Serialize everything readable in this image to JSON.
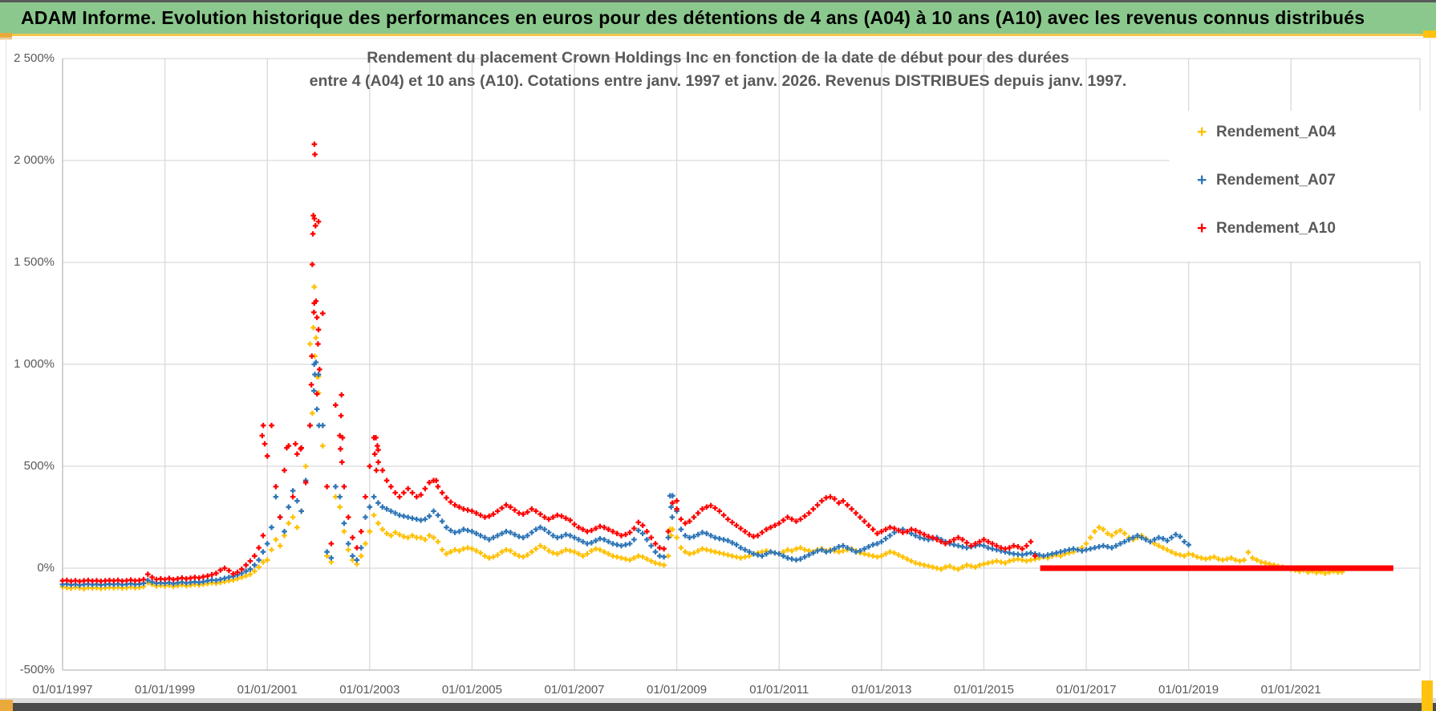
{
  "header": {
    "title": "ADAM Informe. Evolution historique des performances en euros pour des détentions de 4 ans (A04) à 10 ans (A10) avec les revenus connus distribués"
  },
  "chart": {
    "title_line1": "Rendement du placement Crown Holdings Inc en fonction de la date de début pour des durées",
    "title_line2": "entre 4 (A04) et 10 ans (A10). Cotations entre janv. 1997 et janv. 2026. Revenus DISTRIBUES depuis janv. 1997."
  },
  "chart_data": {
    "type": "scatter",
    "marker": "plus",
    "grid": true,
    "legend_position": "right-top",
    "x_axis": {
      "tick_labels": [
        "01/01/1997",
        "01/01/1999",
        "01/01/2001",
        "01/01/2003",
        "01/01/2005",
        "01/01/2007",
        "01/01/2009",
        "01/01/2011",
        "01/01/2013",
        "01/01/2015",
        "01/01/2017",
        "01/01/2019",
        "01/01/2021"
      ],
      "tick_years": [
        1997,
        1999,
        2001,
        2003,
        2005,
        2007,
        2009,
        2011,
        2013,
        2015,
        2017,
        2019,
        2021
      ],
      "range_years": [
        1997.0,
        2023.6
      ]
    },
    "y_axis": {
      "tick_labels": [
        "2 500%",
        "2 000%",
        "1 500%",
        "1 000%",
        "500%",
        "0%",
        "-500%"
      ],
      "tick_values": [
        2500,
        2000,
        1500,
        1000,
        500,
        0,
        -500
      ],
      "range": [
        -500,
        2500
      ],
      "unit": "%"
    },
    "series": [
      {
        "name": "Rendement_A04",
        "color": "#FFC000",
        "start_year": 1997.0,
        "interval_months": 1,
        "values": [
          -92,
          -96,
          -99,
          -94,
          -97,
          -101,
          -95,
          -98,
          -96,
          -100,
          -97,
          -95,
          -97,
          -94,
          -98,
          -96,
          -93,
          -97,
          -95,
          -90,
          -72,
          -80,
          -88,
          -85,
          -88,
          -84,
          -90,
          -86,
          -82,
          -87,
          -84,
          -80,
          -83,
          -79,
          -76,
          -72,
          -75,
          -70,
          -66,
          -62,
          -58,
          -52,
          -45,
          -38,
          -30,
          -15,
          5,
          30,
          40,
          90,
          140,
          110,
          160,
          220,
          250,
          200,
          280,
          500,
          1100,
          1380,
          940,
          600,
          60,
          30,
          350,
          300,
          180,
          90,
          40,
          20,
          60,
          120,
          180,
          260,
          220,
          190,
          170,
          160,
          175,
          165,
          155,
          150,
          160,
          150,
          150,
          140,
          160,
          150,
          130,
          90,
          70,
          80,
          90,
          85,
          95,
          100,
          95,
          85,
          75,
          60,
          50,
          55,
          65,
          80,
          90,
          85,
          70,
          60,
          55,
          65,
          80,
          95,
          110,
          100,
          85,
          75,
          70,
          80,
          90,
          85,
          80,
          70,
          60,
          70,
          85,
          95,
          90,
          80,
          70,
          60,
          55,
          50,
          45,
          40,
          50,
          60,
          55,
          45,
          35,
          25,
          20,
          15,
          60,
          190,
          150,
          100,
          80,
          70,
          75,
          85,
          95,
          90,
          85,
          80,
          75,
          70,
          65,
          60,
          55,
          50,
          55,
          60,
          70,
          75,
          80,
          85,
          80,
          75,
          70,
          80,
          90,
          85,
          95,
          100,
          90,
          85,
          80,
          90,
          95,
          85,
          90,
          85,
          80,
          85,
          90,
          95,
          85,
          75,
          70,
          65,
          60,
          55,
          60,
          70,
          80,
          75,
          65,
          55,
          45,
          35,
          25,
          20,
          15,
          10,
          5,
          0,
          -5,
          5,
          10,
          0,
          -5,
          5,
          15,
          10,
          5,
          15,
          20,
          25,
          30,
          35,
          30,
          25,
          35,
          40,
          45,
          40,
          35,
          40,
          45,
          50,
          55,
          50,
          60,
          65,
          60,
          70,
          75,
          80,
          90,
          100,
          120,
          150,
          180,
          200,
          190,
          170,
          160,
          175,
          185,
          170,
          150,
          140,
          150,
          160,
          145,
          130,
          120,
          110,
          100,
          90,
          80,
          70,
          65,
          60,
          70,
          65,
          55,
          50,
          45,
          50,
          55,
          45,
          40,
          45,
          50,
          40,
          35,
          40,
          78,
          50,
          40,
          30,
          25,
          20,
          15,
          10,
          5,
          0,
          -5,
          -10,
          -15,
          -10,
          -20,
          -15,
          -22,
          -18,
          -25,
          -20,
          -15,
          -20,
          -18
        ],
        "extra_points": [
          [
            2001.92,
            1380
          ],
          [
            2001.9,
            1180
          ],
          [
            2001.95,
            1130
          ],
          [
            2001.93,
            1040
          ],
          [
            2001.97,
            940
          ],
          [
            2002.0,
            860
          ],
          [
            2001.88,
            760
          ],
          [
            2008.87,
            190
          ],
          [
            2008.89,
            160
          ]
        ]
      },
      {
        "name": "Rendement_A07",
        "color": "#2E75B6",
        "start_year": 1997.0,
        "interval_months": 1,
        "values": [
          -80,
          -78,
          -82,
          -79,
          -83,
          -80,
          -78,
          -81,
          -79,
          -82,
          -80,
          -78,
          -80,
          -77,
          -81,
          -79,
          -76,
          -80,
          -78,
          -74,
          -60,
          -68,
          -74,
          -72,
          -74,
          -71,
          -76,
          -72,
          -69,
          -73,
          -70,
          -67,
          -70,
          -66,
          -62,
          -58,
          -60,
          -55,
          -50,
          -45,
          -40,
          -33,
          -25,
          -15,
          -5,
          15,
          40,
          80,
          120,
          200,
          350,
          250,
          180,
          300,
          380,
          330,
          280,
          430,
          700,
          1000,
          950,
          700,
          80,
          50,
          400,
          350,
          220,
          120,
          60,
          40,
          100,
          250,
          300,
          350,
          320,
          300,
          290,
          280,
          270,
          260,
          255,
          250,
          245,
          240,
          235,
          240,
          255,
          280,
          260,
          230,
          200,
          185,
          175,
          180,
          190,
          185,
          180,
          170,
          160,
          150,
          140,
          150,
          160,
          170,
          180,
          175,
          165,
          155,
          150,
          160,
          175,
          190,
          200,
          190,
          175,
          160,
          150,
          155,
          165,
          160,
          150,
          140,
          130,
          120,
          125,
          135,
          145,
          140,
          130,
          120,
          115,
          110,
          115,
          120,
          140,
          185,
          170,
          140,
          110,
          80,
          60,
          55,
          150,
          355,
          280,
          190,
          160,
          150,
          155,
          165,
          175,
          170,
          160,
          150,
          145,
          140,
          135,
          125,
          115,
          100,
          90,
          80,
          70,
          65,
          60,
          70,
          80,
          75,
          70,
          60,
          50,
          45,
          40,
          45,
          55,
          65,
          75,
          85,
          90,
          80,
          85,
          95,
          105,
          110,
          100,
          90,
          80,
          85,
          95,
          105,
          115,
          120,
          130,
          145,
          160,
          175,
          185,
          190,
          180,
          170,
          160,
          150,
          145,
          140,
          145,
          150,
          140,
          130,
          120,
          115,
          110,
          105,
          100,
          105,
          110,
          115,
          110,
          100,
          95,
          90,
          85,
          80,
          75,
          70,
          68,
          65,
          70,
          75,
          70,
          65,
          60,
          65,
          70,
          75,
          80,
          85,
          90,
          95,
          90,
          85,
          90,
          95,
          100,
          105,
          110,
          105,
          100,
          110,
          120,
          130,
          140,
          150,
          160,
          150,
          140,
          130,
          140,
          150,
          145,
          135,
          150,
          165,
          155,
          130,
          115
        ],
        "extra_points": [
          [
            2001.95,
            1010
          ],
          [
            2001.93,
            950
          ],
          [
            2001.91,
            870
          ],
          [
            2001.97,
            780
          ],
          [
            2002.01,
            700
          ],
          [
            2008.87,
            355
          ],
          [
            2008.89,
            300
          ],
          [
            2008.91,
            250
          ]
        ]
      },
      {
        "name": "Rendement_A10",
        "color": "#FF0000",
        "start_year": 1997.0,
        "interval_months": 1,
        "values": [
          -62,
          -60,
          -64,
          -61,
          -65,
          -62,
          -60,
          -63,
          -61,
          -64,
          -62,
          -60,
          -62,
          -59,
          -63,
          -61,
          -58,
          -62,
          -60,
          -55,
          -30,
          -45,
          -55,
          -52,
          -55,
          -50,
          -56,
          -52,
          -48,
          -52,
          -49,
          -45,
          -48,
          -42,
          -38,
          -32,
          -25,
          -10,
          0,
          -12,
          -28,
          -20,
          -5,
          15,
          35,
          60,
          100,
          160,
          550,
          700,
          400,
          250,
          480,
          600,
          350,
          560,
          590,
          420,
          700,
          1300,
          1700,
          1250,
          400,
          120,
          800,
          650,
          400,
          250,
          150,
          100,
          180,
          350,
          500,
          640,
          580,
          480,
          430,
          400,
          370,
          350,
          370,
          390,
          370,
          350,
          360,
          390,
          420,
          430,
          400,
          370,
          345,
          325,
          310,
          300,
          290,
          285,
          280,
          270,
          260,
          250,
          255,
          265,
          280,
          295,
          310,
          300,
          285,
          270,
          265,
          275,
          290,
          280,
          265,
          250,
          240,
          250,
          260,
          255,
          245,
          235,
          215,
          200,
          190,
          180,
          185,
          195,
          205,
          200,
          190,
          180,
          170,
          160,
          165,
          175,
          195,
          225,
          210,
          180,
          150,
          120,
          100,
          95,
          180,
          320,
          290,
          240,
          220,
          230,
          250,
          270,
          290,
          300,
          307,
          295,
          280,
          260,
          240,
          225,
          210,
          195,
          180,
          165,
          155,
          160,
          175,
          190,
          200,
          210,
          220,
          235,
          250,
          240,
          230,
          240,
          255,
          270,
          290,
          310,
          330,
          345,
          350,
          340,
          320,
          330,
          310,
          290,
          270,
          250,
          230,
          210,
          190,
          170,
          180,
          190,
          200,
          195,
          185,
          175,
          180,
          190,
          185,
          175,
          165,
          155,
          150,
          140,
          130,
          120,
          130,
          140,
          150,
          140,
          125,
          110,
          120,
          130,
          140,
          130,
          120,
          110,
          100,
          95,
          100,
          110,
          105,
          95,
          110,
          130,
          60
        ],
        "extra_points": [
          [
            2001.92,
            2080
          ],
          [
            2001.93,
            2030
          ],
          [
            2001.9,
            1730
          ],
          [
            2001.92,
            1715
          ],
          [
            2001.94,
            1680
          ],
          [
            2001.89,
            1640
          ],
          [
            2001.88,
            1490
          ],
          [
            2001.95,
            1310
          ],
          [
            2001.91,
            1255
          ],
          [
            2001.97,
            1230
          ],
          [
            2002.0,
            1170
          ],
          [
            2001.99,
            1100
          ],
          [
            2001.87,
            1040
          ],
          [
            2002.02,
            975
          ],
          [
            2001.86,
            900
          ],
          [
            2001.97,
            855
          ],
          [
            2002.45,
            850
          ],
          [
            2002.44,
            748
          ],
          [
            2002.47,
            640
          ],
          [
            2002.43,
            585
          ],
          [
            2002.46,
            520
          ],
          [
            2003.12,
            640
          ],
          [
            2003.15,
            600
          ],
          [
            2003.1,
            560
          ],
          [
            2003.17,
            520
          ],
          [
            2003.13,
            480
          ],
          [
            2009.0,
            330
          ],
          [
            2000.92,
            700
          ],
          [
            2000.9,
            650
          ],
          [
            2000.95,
            610
          ],
          [
            2001.38,
            590
          ],
          [
            2001.55,
            610
          ],
          [
            2001.65,
            585
          ],
          [
            2004.3,
            430
          ]
        ],
        "flat_zero_segment": {
          "from_year": 2016.1,
          "to_year": 2023.0,
          "value": 0
        }
      }
    ]
  },
  "colors": {
    "header_green": "#8bc88d",
    "selection_gold": "#ffc20e",
    "selection_orange": "#e9a93c",
    "grid": "#d9d9d9",
    "axis_text": "#595959",
    "bottom_bar": "#4a4a4a"
  }
}
